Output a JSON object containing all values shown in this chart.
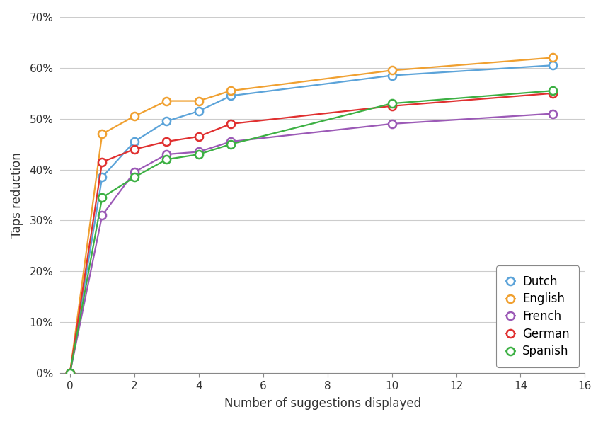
{
  "x": [
    0,
    1,
    2,
    3,
    4,
    5,
    10,
    15
  ],
  "dutch": [
    0.0,
    0.385,
    0.455,
    0.495,
    0.515,
    0.545,
    0.585,
    0.605
  ],
  "english": [
    0.0,
    0.47,
    0.505,
    0.535,
    0.535,
    0.555,
    0.595,
    0.62
  ],
  "french": [
    0.0,
    0.31,
    0.395,
    0.43,
    0.435,
    0.455,
    0.49,
    0.51
  ],
  "german": [
    0.0,
    0.415,
    0.44,
    0.455,
    0.465,
    0.49,
    0.525,
    0.55
  ],
  "spanish": [
    0.0,
    0.345,
    0.385,
    0.42,
    0.43,
    0.45,
    0.53,
    0.555
  ],
  "colors": {
    "dutch": "#5ba3d9",
    "english": "#f0a030",
    "french": "#9b59b6",
    "german": "#e03030",
    "spanish": "#3cb043"
  },
  "labels": {
    "dutch": "Dutch",
    "english": "English",
    "french": "French",
    "german": "German",
    "spanish": "Spanish"
  },
  "xlabel": "Number of suggestions displayed",
  "ylabel": "Taps reduction",
  "xlim": [
    -0.3,
    16
  ],
  "ylim": [
    0,
    0.7
  ],
  "xticks": [
    0,
    2,
    4,
    6,
    8,
    10,
    12,
    14,
    16
  ],
  "yticks": [
    0.0,
    0.1,
    0.2,
    0.3,
    0.4,
    0.5,
    0.6,
    0.7
  ],
  "background_color": "#ffffff",
  "grid_color": "#cccccc",
  "marker_size": 8,
  "linewidth": 1.6
}
